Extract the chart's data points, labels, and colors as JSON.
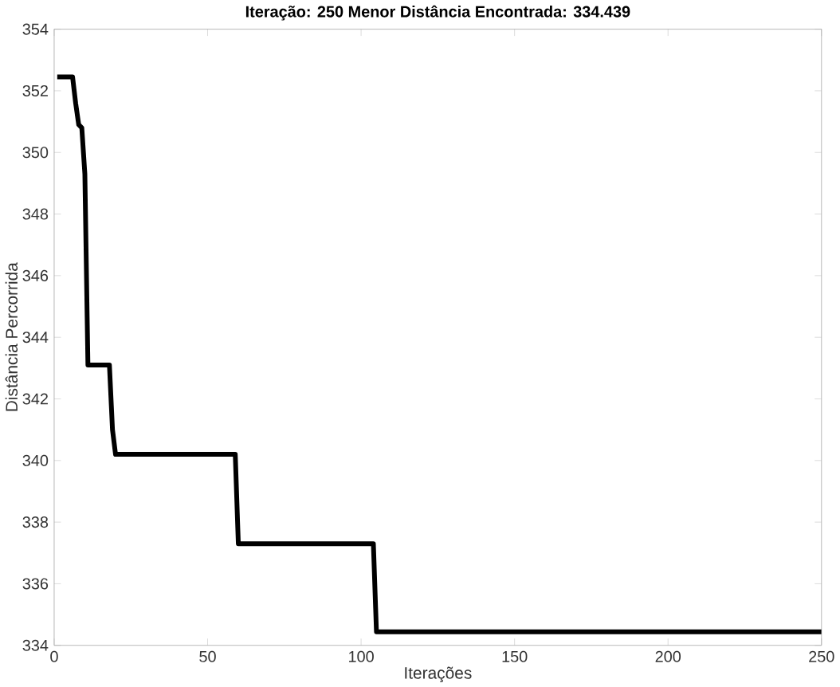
{
  "chart_data": {
    "type": "line",
    "title": "Iteração: 250  Menor Distância Encontrada: 334.439",
    "xlabel": "Iterações",
    "ylabel": "Distância Percorrida",
    "x": [
      1,
      6,
      7,
      8,
      9,
      10,
      11,
      18,
      19,
      20,
      59,
      60,
      104,
      105,
      250
    ],
    "series": [
      {
        "color": "#000000",
        "values": [
          352.45,
          352.45,
          351.6,
          350.9,
          350.8,
          349.3,
          343.1,
          343.1,
          341.0,
          340.2,
          340.2,
          337.3,
          337.3,
          334.439,
          334.439
        ]
      }
    ],
    "xlim": [
      0,
      250
    ],
    "ylim": [
      334,
      354
    ],
    "xticks": [
      0,
      50,
      100,
      150,
      200,
      250
    ],
    "yticks": [
      334,
      336,
      338,
      340,
      342,
      344,
      346,
      348,
      350,
      352,
      354
    ],
    "grid": false,
    "line_style": "solid",
    "marker": "none"
  }
}
